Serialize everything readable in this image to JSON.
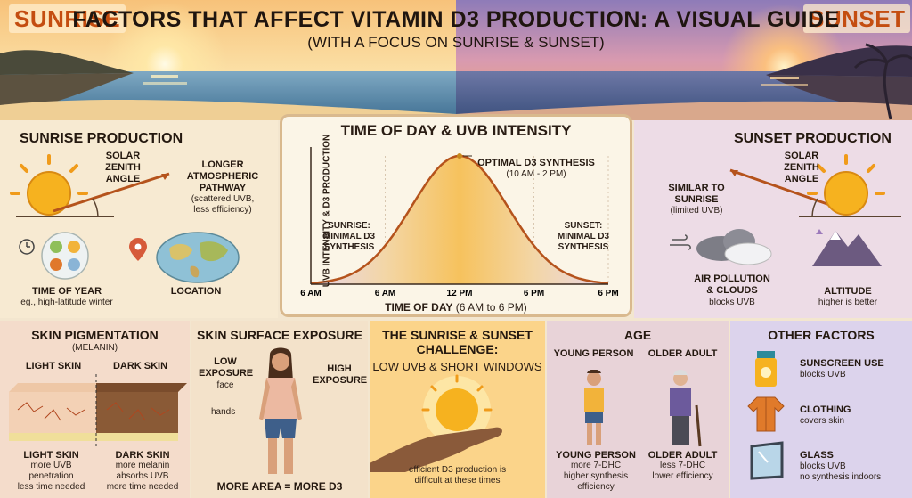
{
  "header": {
    "badge_left": "SUNRISE",
    "badge_right": "SUNSET",
    "title": "FACTORS THAT AFFECT VITAMIN D3 PRODUCTION: A VISUAL GUIDE",
    "subtitle": "(WITH A FOCUS ON SUNRISE & SUNSET)"
  },
  "sunrise_panel": {
    "title": "SUNRISE PRODUCTION",
    "angle_label": "SOLAR\nZENITH\nANGLE",
    "pathway_label": "LONGER\nATMOSPHERIC\nPATHWAY",
    "pathway_note": "(scattered UVB,\nless efficiency)",
    "time_of_year_label": "TIME OF YEAR",
    "time_of_year_note": "eg., high-latitude winter",
    "location_label": "LOCATION"
  },
  "sunset_panel": {
    "title": "SUNSET PRODUCTION",
    "angle_label": "SOLAR\nZENITH\nANGLE",
    "similar_label": "SIMILAR TO\nSUNRISE",
    "similar_note": "(limited UVB)",
    "pollution_label": "AIR POLLUTION\n& CLOUDS",
    "pollution_note": "blocks UVB",
    "altitude_label": "ALTITUDE",
    "altitude_note": "higher is better"
  },
  "chart_data": {
    "type": "area",
    "title": "TIME OF DAY & UVB INTENSITY",
    "ylabel": "UVB INTENSITY & D3 PRODUCTION",
    "xlabel": "TIME OF DAY",
    "xlabel_note": "(6 AM to 6 PM)",
    "x_ticks": [
      "6 AM",
      "6 AM",
      "12 PM",
      "6 PM",
      "6 PM"
    ],
    "x": [
      0,
      1,
      2,
      3,
      4
    ],
    "peak_x": 2,
    "annotations": {
      "peak": "OPTIMAL D3 SYNTHESIS",
      "peak_note": "(10 AM - 2 PM)",
      "left": "SUNRISE:\nMINIMAL D3\nSYNTHESIS",
      "right": "SUNSET:\nMINIMAL D3\nSYNTHESIS"
    },
    "colors": {
      "curve": "#b5531c",
      "fill_mid": "#f6c25d",
      "fill_edge": "#e8d5e8"
    }
  },
  "skin_pigmentation": {
    "title": "SKIN PIGMENTATION",
    "subtitle": "(MELANIN)",
    "light_label": "LIGHT SKIN",
    "dark_label": "DARK SKIN",
    "light_caption": "LIGHT SKIN",
    "light_note": "more UVB\npenetration\nless time needed",
    "dark_caption": "DARK SKIN",
    "dark_note": "more melanin\nabsorbs UVB\nmore time needed"
  },
  "skin_exposure": {
    "title": "SKIN SURFACE EXPOSURE",
    "low_label": "LOW\nEXPOSURE",
    "low_note": "face",
    "high_label": "HIGH\nEXPOSURE",
    "hands_label": "hands",
    "footer": "MORE AREA = MORE D3"
  },
  "challenge": {
    "title": "THE SUNRISE & SUNSET\nCHALLENGE:",
    "subtitle": "LOW UVB & SHORT WINDOWS",
    "note": "efficient D3 production is\ndifficult at these times"
  },
  "age": {
    "title": "AGE",
    "young_label": "YOUNG PERSON",
    "older_label": "OLDER ADULT",
    "young_caption": "YOUNG PERSON",
    "young_note": "more 7-DHC\nhigher synthesis\nefficiency",
    "older_caption": "OLDER ADULT",
    "older_note": "less 7-DHC\nlower efficiency"
  },
  "other": {
    "title": "OTHER FACTORS",
    "items": [
      {
        "label": "SUNSCREEN USE",
        "note": "blocks UVB"
      },
      {
        "label": "CLOTHING",
        "note": "covers skin"
      },
      {
        "label": "GLASS",
        "note": "blocks UVB\nno synthesis indoors"
      }
    ]
  }
}
